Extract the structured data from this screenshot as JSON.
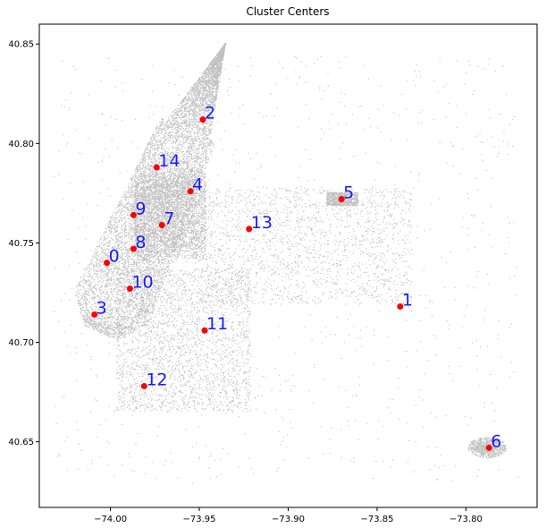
{
  "chart_data": {
    "type": "scatter",
    "title": "Cluster Centers",
    "xlabel": "",
    "ylabel": "",
    "xlim": [
      -74.04,
      -73.76
    ],
    "ylim": [
      40.617,
      40.86
    ],
    "xticks": [
      -74.0,
      -73.95,
      -73.9,
      -73.85,
      -73.8
    ],
    "xtick_labels": [
      "−74.00",
      "−73.95",
      "−73.90",
      "−73.85",
      "−73.80"
    ],
    "yticks": [
      40.65,
      40.7,
      40.75,
      40.8,
      40.85
    ],
    "ytick_labels": [
      "40.65",
      "40.70",
      "40.75",
      "40.80",
      "40.85"
    ],
    "grid": false,
    "background_points_color": "#808080",
    "center_color": "#ff0000",
    "label_color": "#1a1aff",
    "centers": [
      {
        "label": "0",
        "x": -74.002,
        "y": 40.74
      },
      {
        "label": "1",
        "x": -73.837,
        "y": 40.718
      },
      {
        "label": "2",
        "x": -73.948,
        "y": 40.812
      },
      {
        "label": "3",
        "x": -74.009,
        "y": 40.714
      },
      {
        "label": "4",
        "x": -73.955,
        "y": 40.776
      },
      {
        "label": "5",
        "x": -73.87,
        "y": 40.772
      },
      {
        "label": "6",
        "x": -73.787,
        "y": 40.647
      },
      {
        "label": "7",
        "x": -73.971,
        "y": 40.759
      },
      {
        "label": "8",
        "x": -73.987,
        "y": 40.747
      },
      {
        "label": "9",
        "x": -73.987,
        "y": 40.764
      },
      {
        "label": "10",
        "x": -73.989,
        "y": 40.727
      },
      {
        "label": "11",
        "x": -73.947,
        "y": 40.706
      },
      {
        "label": "12",
        "x": -73.981,
        "y": 40.678
      },
      {
        "label": "13",
        "x": -73.922,
        "y": 40.757
      },
      {
        "label": "14",
        "x": -73.974,
        "y": 40.788
      }
    ]
  }
}
